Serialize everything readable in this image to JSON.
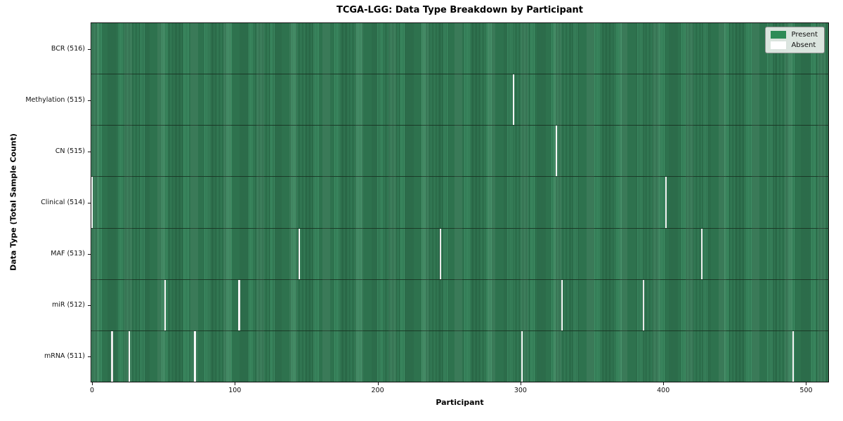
{
  "chart_data": {
    "type": "heatmap",
    "title": "TCGA-LGG: Data Type Breakdown by Participant",
    "xlabel": "Participant",
    "ylabel": "Data Type (Total Sample Count)",
    "x_ticks": [
      0,
      100,
      200,
      300,
      400,
      500
    ],
    "x_range": [
      0,
      516
    ],
    "n_participants": 516,
    "grid": false,
    "legend_position": "upper right",
    "legend": [
      {
        "label": "Present",
        "color": "#2e8b57"
      },
      {
        "label": "Absent",
        "color": "#ffffff"
      }
    ],
    "colors": {
      "present": "#2e8b57",
      "absent": "#ffffff"
    },
    "rows": [
      {
        "label": "BCR (516)",
        "data_type": "BCR",
        "total_samples": 516,
        "absent_participants": []
      },
      {
        "label": "Methylation (515)",
        "data_type": "Methylation",
        "total_samples": 515,
        "absent_participants": [
          295
        ]
      },
      {
        "label": "CN (515)",
        "data_type": "CN",
        "total_samples": 515,
        "absent_participants": [
          325
        ]
      },
      {
        "label": "Clinical (514)",
        "data_type": "Clinical",
        "total_samples": 514,
        "absent_participants": [
          0,
          402
        ]
      },
      {
        "label": "MAF (513)",
        "data_type": "MAF",
        "total_samples": 513,
        "absent_participants": [
          145,
          244,
          427
        ]
      },
      {
        "label": "miR (512)",
        "data_type": "miR",
        "total_samples": 512,
        "absent_participants": [
          51,
          103,
          329,
          386
        ]
      },
      {
        "label": "mRNA (511)",
        "data_type": "mRNA",
        "total_samples": 511,
        "absent_participants": [
          14,
          26,
          72,
          301,
          491
        ]
      }
    ]
  }
}
